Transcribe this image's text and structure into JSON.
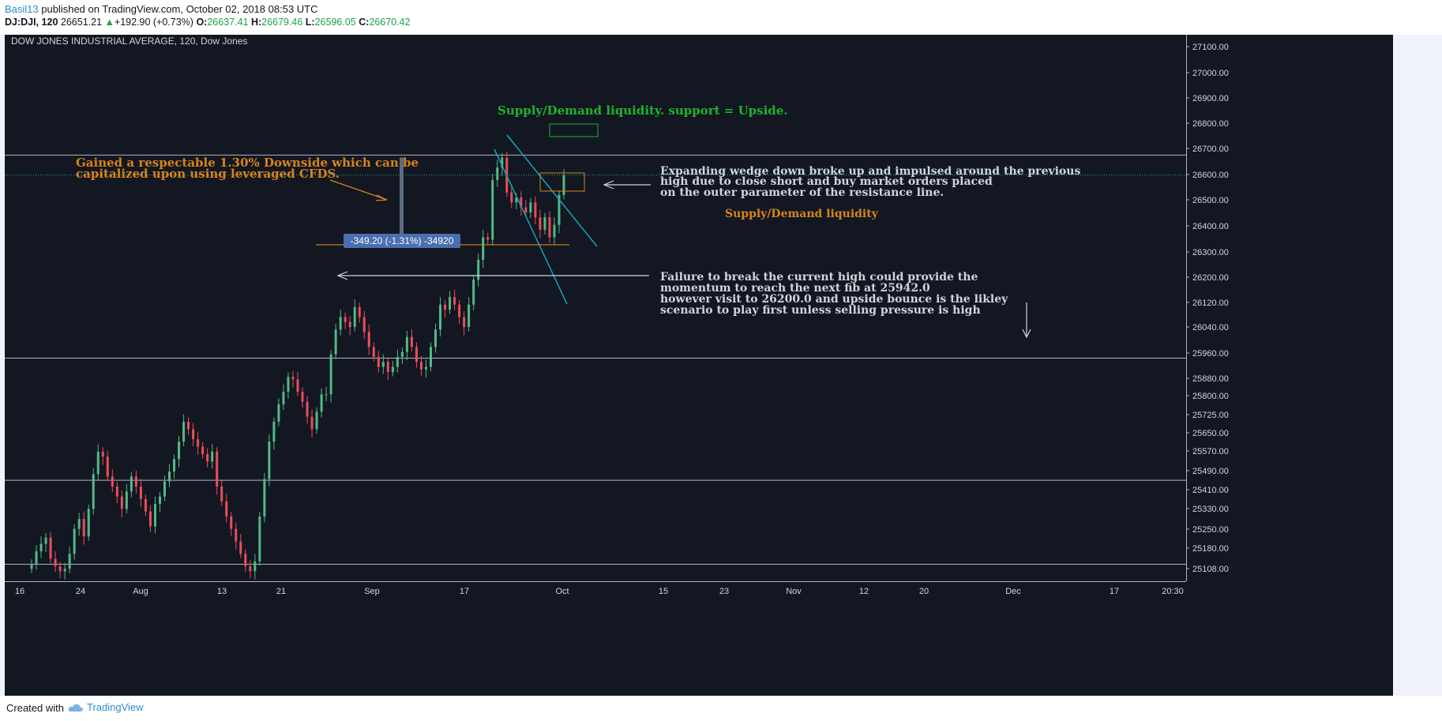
{
  "header": {
    "user": "Basil13",
    "published": " published on TradingView.com, October 02, 2018 08:53 UTC",
    "symbol": "DJ:DJI, 120",
    "last": "26651.21",
    "change": "+192.90 (+0.73%)",
    "o_label": "O:",
    "o_value": "26637.41",
    "h_label": "H:",
    "h_value": "26679.46",
    "l_label": "L:",
    "l_value": "26596.05",
    "c_label": "C:",
    "c_value": "26670.42"
  },
  "footer": {
    "created_with": "Created with",
    "brand": "TradingView"
  },
  "colors": {
    "background": "#131722",
    "up": "#53b987",
    "down": "#eb4d5c",
    "green_text": "#1fb32a",
    "orange_text": "#d7841a",
    "white_text": "#d1d4dc",
    "teal": "#13a4b4",
    "measure_label": "#4a6fb0"
  },
  "chart_data": {
    "type": "candlestick",
    "title": "DOW JONES INDUSTRIAL AVERAGE, 120, Dow Jones",
    "ylim": [
      25040,
      27220
    ],
    "y_ticks": [
      "27100.00",
      "27000.00",
      "26900.00",
      "26800.00",
      "26700.00",
      "26600.00",
      "26500.00",
      "26400.00",
      "26300.00",
      "26200.00",
      "26120.00",
      "26040.00",
      "25960.00",
      "25880.00",
      "25800.00",
      "25725.00",
      "25650.00",
      "25570.00",
      "25490.00",
      "25410.00",
      "25330.00",
      "25250.00",
      "25180.00",
      "25108.00"
    ],
    "x_ticks": [
      "16",
      "24",
      "Aug",
      "13",
      "21",
      "Sep",
      "17",
      "Oct",
      "15",
      "23",
      "Nov",
      "12",
      "20",
      "Dec",
      "17",
      "20:30"
    ],
    "current_price_line": 26670,
    "horizontal_levels": [
      26750,
      25935,
      25445,
      25108
    ],
    "closes": [
      25110,
      25160,
      25190,
      25215,
      25130,
      25100,
      25080,
      25090,
      25150,
      25250,
      25290,
      25220,
      25330,
      25470,
      25560,
      25540,
      25460,
      25420,
      25380,
      25330,
      25400,
      25460,
      25420,
      25370,
      25320,
      25260,
      25350,
      25380,
      25440,
      25480,
      25530,
      25600,
      25680,
      25650,
      25610,
      25580,
      25550,
      25520,
      25560,
      25420,
      25360,
      25300,
      25250,
      25200,
      25150,
      25100,
      25080,
      25120,
      25300,
      25450,
      25600,
      25680,
      25750,
      25800,
      25860,
      25850,
      25800,
      25760,
      25700,
      25650,
      25720,
      25790,
      25790,
      25950,
      26050,
      26100,
      26080,
      26060,
      26140,
      26100,
      26040,
      25980,
      25940,
      25900,
      25920,
      25880,
      25900,
      25940,
      25960,
      26020,
      25980,
      25920,
      25890,
      25900,
      25980,
      26050,
      26150,
      26130,
      26180,
      26150,
      26100,
      26060,
      26150,
      26250,
      26330,
      26420,
      26410,
      26650,
      26700,
      26740,
      26600,
      26560,
      26580,
      26540,
      26520,
      26560,
      26500,
      26450,
      26500,
      26420,
      26470,
      26590,
      26670
    ],
    "trendlines": [
      {
        "from": [
          "Sep 21",
          26750
        ],
        "to": [
          "Oct 3",
          26310
        ]
      },
      {
        "from": [
          "Sep 21",
          26700
        ],
        "to": [
          "Sep 28",
          26100
        ]
      }
    ],
    "measurement": {
      "label": "-349.20 (-1.31%) -34920",
      "from": 26740,
      "to": 26390
    },
    "annotations": [
      {
        "text": "Supply/Demand liquidity. support = Upside.",
        "color": "green"
      },
      {
        "text": "Gained a respectable 1.30% Downside which can be",
        "color": "orange"
      },
      {
        "text": "capitalized upon using leveraged CFDS.",
        "color": "orange"
      },
      {
        "text": "Expanding wedge down broke up and impulsed around the previous",
        "color": "white"
      },
      {
        "text": "high due to close short and buy market orders placed",
        "color": "white"
      },
      {
        "text": "on the outer parameter of the resistance line.",
        "color": "white"
      },
      {
        "text": "Supply/Demand liquidity",
        "color": "orange"
      },
      {
        "text": "Failure to break the current high could provide the",
        "color": "white"
      },
      {
        "text": "momentum to reach the next fib at 25942.0",
        "color": "white"
      },
      {
        "text": "however visit to 26200.0 and upside bounce is the likley",
        "color": "white"
      },
      {
        "text": "scenario to play first unless selling pressure is high",
        "color": "white"
      }
    ]
  }
}
